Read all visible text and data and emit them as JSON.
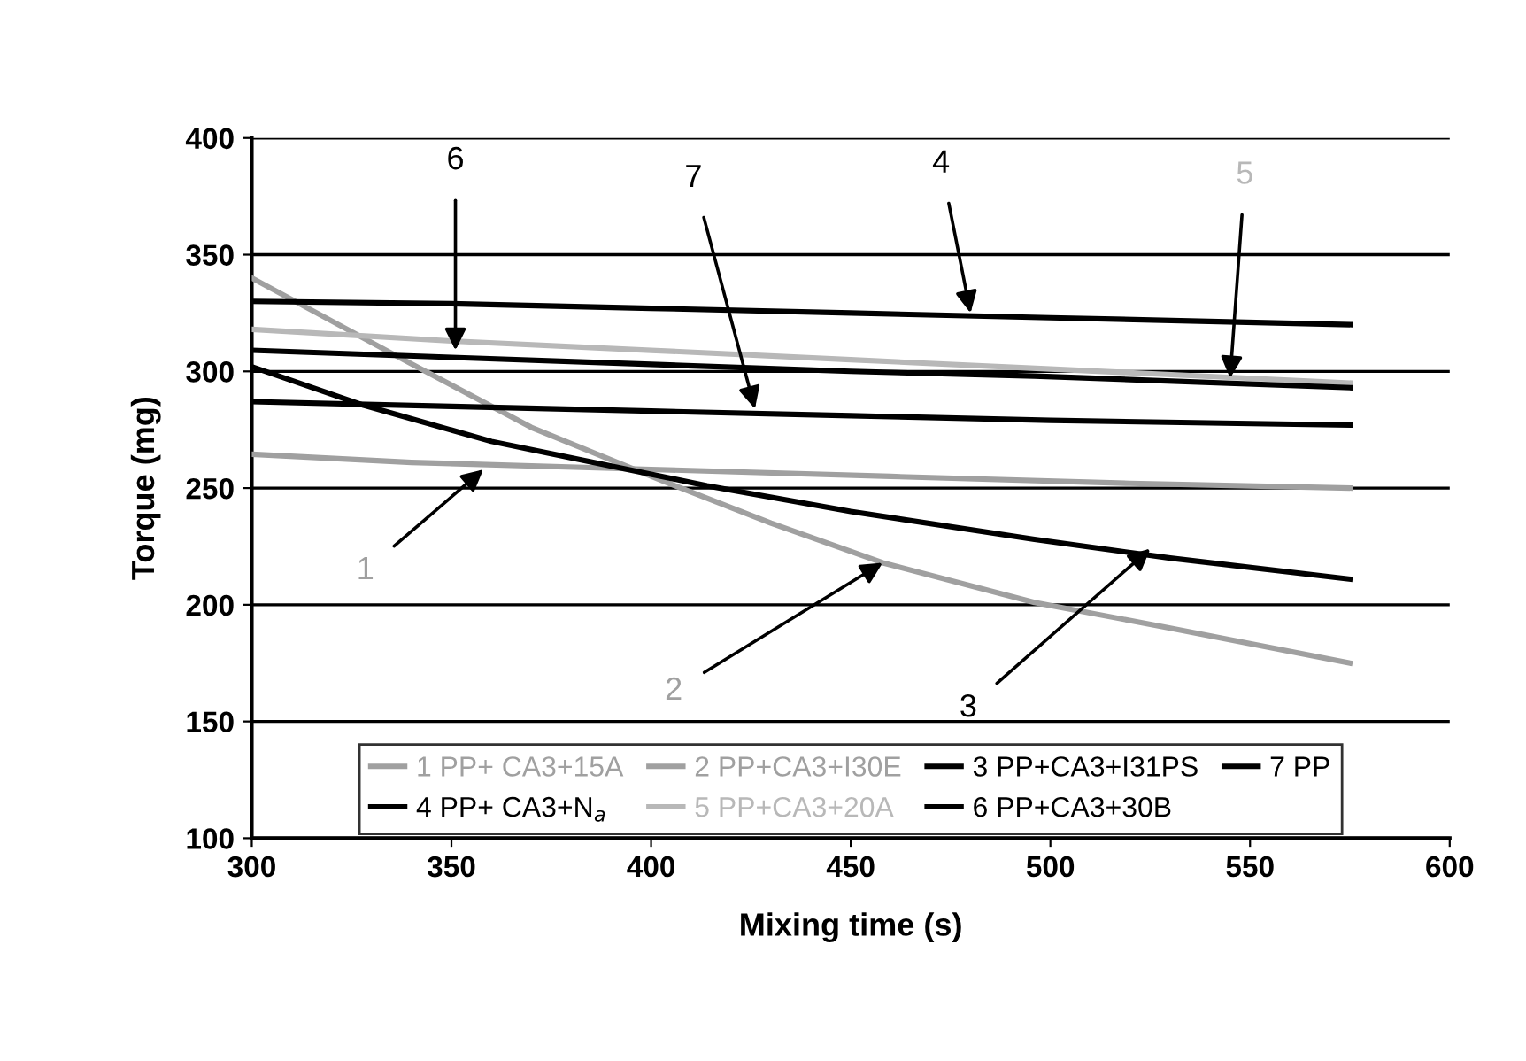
{
  "chart_data": {
    "type": "line",
    "xlabel": "Mixing time (s)",
    "ylabel": "Torque (mg)",
    "xlim": [
      300,
      600
    ],
    "ylim": [
      100,
      400
    ],
    "xticks": [
      300,
      350,
      400,
      450,
      500,
      550,
      600
    ],
    "yticks": [
      100,
      150,
      200,
      250,
      300,
      350,
      400
    ],
    "grid": "y",
    "legend": "bottom",
    "marker": "none",
    "line_style": "solid",
    "series": [
      {
        "name": "1 PP+ CA3+15A",
        "color": "#a0a0a0",
        "x": [
          300,
          340,
          400,
          460,
          520,
          575
        ],
        "values": [
          264.5,
          261,
          258,
          255,
          252,
          250
        ]
      },
      {
        "name": "2 PP+CA3+I30E",
        "color": "#a0a0a0",
        "x": [
          300,
          338,
          370,
          403,
          430,
          458,
          496,
          530,
          575
        ],
        "values": [
          340,
          305,
          276,
          253,
          235,
          218,
          201,
          190,
          175
        ]
      },
      {
        "name": "3 PP+CA3+I31PS",
        "color": "#000000",
        "x": [
          300,
          328,
          360,
          414,
          450,
          496,
          530,
          575
        ],
        "values": [
          302,
          285.5,
          270,
          251,
          240,
          228,
          220,
          211
        ]
      },
      {
        "name": "4 PP+ CA3+N$_{a}$",
        "color": "#000000",
        "x": [
          300,
          350,
          400,
          450,
          500,
          575
        ],
        "values": [
          330,
          329,
          327,
          325,
          323,
          320
        ]
      },
      {
        "name": "5 PP+CA3+20A",
        "color": "#b8b8b8",
        "x": [
          300,
          350,
          400,
          450,
          500,
          575
        ],
        "values": [
          318,
          313,
          309,
          305,
          301,
          295
        ]
      },
      {
        "name": "6 PP+CA3+30B",
        "color": "#000000",
        "x": [
          300,
          350,
          400,
          450,
          496,
          575
        ],
        "values": [
          309,
          306,
          303,
          300,
          298,
          293
        ]
      },
      {
        "name": "7 PP",
        "color": "#000000",
        "x": [
          300,
          350,
          400,
          450,
          500,
          575
        ],
        "values": [
          287,
          285,
          283,
          281,
          279,
          277
        ]
      }
    ],
    "annotations": [
      {
        "text": "1",
        "x": 358,
        "y": 258
      },
      {
        "text": "2",
        "x": 458,
        "y": 218
      },
      {
        "text": "3",
        "x": 525,
        "y": 224
      },
      {
        "text": "4",
        "x": 480,
        "y": 325
      },
      {
        "text": "5",
        "x": 545,
        "y": 297
      },
      {
        "text": "6",
        "x": 351,
        "y": 309
      },
      {
        "text": "7",
        "x": 426,
        "y": 284
      }
    ]
  }
}
